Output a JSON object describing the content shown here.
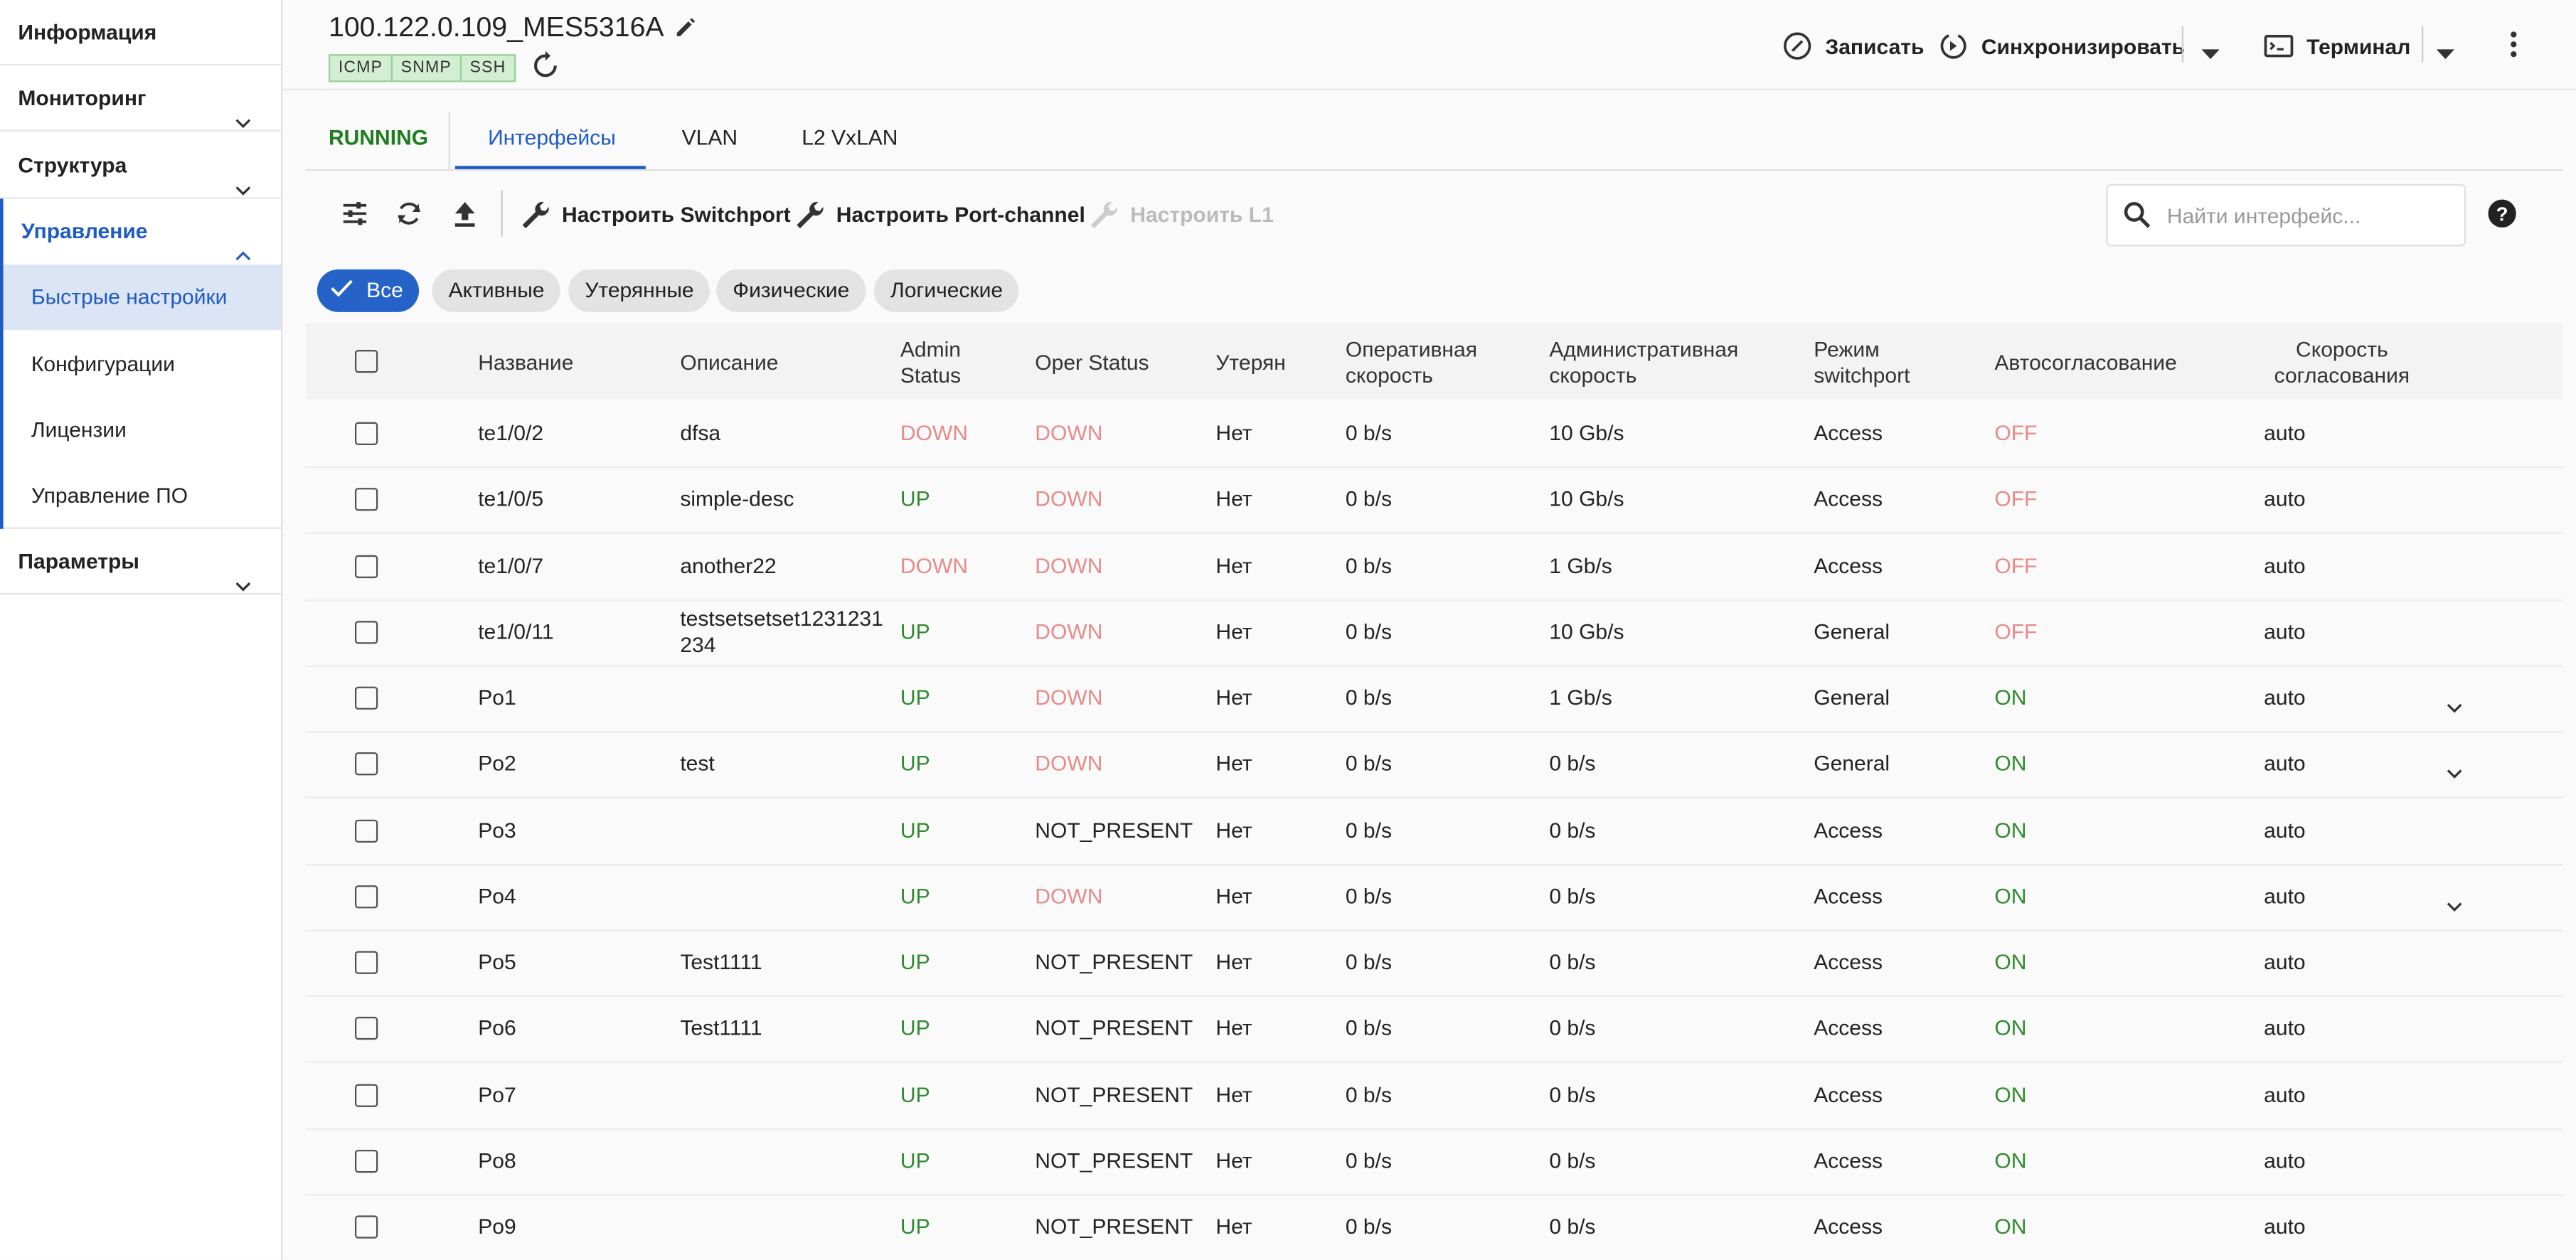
{
  "sidebar": {
    "items": [
      {
        "label": "Информация"
      },
      {
        "label": "Мониторинг"
      },
      {
        "label": "Структура"
      },
      {
        "label": "Управление",
        "children": [
          "Быстрые настройки",
          "Конфигурации",
          "Лицензии",
          "Управление ПО"
        ]
      },
      {
        "label": "Параметры"
      }
    ]
  },
  "header": {
    "title": "100.122.0.109_MES5316A",
    "tags": [
      "ICMP",
      "SNMP",
      "SSH"
    ],
    "actions": [
      "Записать",
      "Синхронизировать",
      "Терминал"
    ]
  },
  "tabs": [
    "RUNNING",
    "Интерфейсы",
    "VLAN",
    "L2 VxLAN"
  ],
  "toolbar": {
    "buttons": [
      "Настроить Switchport",
      "Настроить Port-channel",
      "Настроить L1"
    ],
    "search_placeholder": "Найти интерфейс..."
  },
  "filters": [
    "Все",
    "Активные",
    "Утерянные",
    "Физические",
    "Логические"
  ],
  "table": {
    "columns": [
      "Название",
      "Описание",
      "Admin Status",
      "Oper Status",
      "Утерян",
      "Оперативная скорость",
      "Административная скорость",
      "Режим switchport",
      "Автосогласование",
      "Скорость согласования"
    ],
    "status_colors": {
      "UP": "#2e8b2e",
      "ON": "#2e8b2e",
      "DOWN": "#e88a8a",
      "OFF": "#e88a8a"
    },
    "rows": [
      [
        "te1/0/2",
        "dfsa",
        "DOWN",
        "DOWN",
        "Нет",
        "0 b/s",
        "10 Gb/s",
        "Access",
        "OFF",
        "auto"
      ],
      [
        "te1/0/5",
        "simple-desc",
        "UP",
        "DOWN",
        "Нет",
        "0 b/s",
        "10 Gb/s",
        "Access",
        "OFF",
        "auto"
      ],
      [
        "te1/0/7",
        "another22",
        "DOWN",
        "DOWN",
        "Нет",
        "0 b/s",
        "1 Gb/s",
        "Access",
        "OFF",
        "auto"
      ],
      [
        "te1/0/11",
        "testsetsetset1231231234",
        "UP",
        "DOWN",
        "Нет",
        "0 b/s",
        "10 Gb/s",
        "General",
        "OFF",
        "auto"
      ],
      [
        "Po1",
        "",
        "UP",
        "DOWN",
        "Нет",
        "0 b/s",
        "1 Gb/s",
        "General",
        "ON",
        "auto"
      ],
      [
        "Po2",
        "test",
        "UP",
        "DOWN",
        "Нет",
        "0 b/s",
        "0 b/s",
        "General",
        "ON",
        "auto"
      ],
      [
        "Po3",
        "",
        "UP",
        "NOT_PRESENT",
        "Нет",
        "0 b/s",
        "0 b/s",
        "Access",
        "ON",
        "auto"
      ],
      [
        "Po4",
        "",
        "UP",
        "DOWN",
        "Нет",
        "0 b/s",
        "0 b/s",
        "Access",
        "ON",
        "auto"
      ],
      [
        "Po5",
        "Test1111",
        "UP",
        "NOT_PRESENT",
        "Нет",
        "0 b/s",
        "0 b/s",
        "Access",
        "ON",
        "auto"
      ],
      [
        "Po6",
        "Test1111",
        "UP",
        "NOT_PRESENT",
        "Нет",
        "0 b/s",
        "0 b/s",
        "Access",
        "ON",
        "auto"
      ],
      [
        "Po7",
        "",
        "UP",
        "NOT_PRESENT",
        "Нет",
        "0 b/s",
        "0 b/s",
        "Access",
        "ON",
        "auto"
      ],
      [
        "Po8",
        "",
        "UP",
        "NOT_PRESENT",
        "Нет",
        "0 b/s",
        "0 b/s",
        "Access",
        "ON",
        "auto"
      ],
      [
        "Po9",
        "",
        "UP",
        "NOT_PRESENT",
        "Нет",
        "0 b/s",
        "0 b/s",
        "Access",
        "ON",
        "auto"
      ]
    ]
  }
}
